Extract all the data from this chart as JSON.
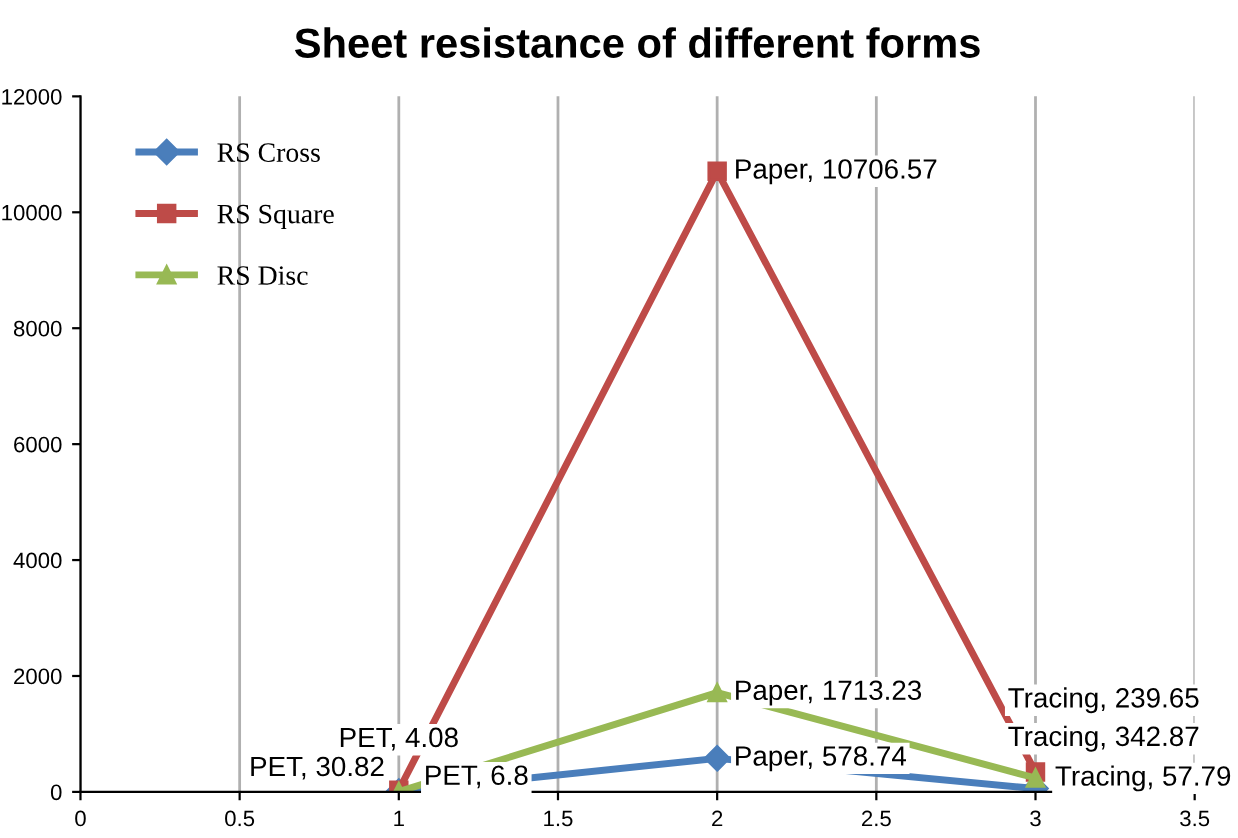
{
  "chart_data": {
    "type": "line",
    "title": "Sheet resistance of different forms",
    "x": [
      1,
      2,
      3
    ],
    "series": [
      {
        "name": "RS Cross",
        "color": "#4a7ebb",
        "marker": "diamond",
        "values": [
          6.8,
          578.74,
          57.79
        ],
        "value_labels": [
          "PET, 6.8",
          "Paper, 578.74",
          "Tracing, 57.79"
        ]
      },
      {
        "name": "RS Square",
        "color": "#be4b48",
        "marker": "square",
        "values": [
          30.82,
          10706.57,
          342.87
        ],
        "value_labels": [
          "PET, 30.82",
          "Paper, 10706.57",
          "Tracing, 342.87"
        ]
      },
      {
        "name": "RS Disc",
        "color": "#98b954",
        "marker": "triangle",
        "values": [
          4.08,
          1713.23,
          239.65
        ],
        "value_labels": [
          "PET, 4.08",
          "Paper, 1713.23",
          "Tracing, 239.65"
        ]
      }
    ],
    "xlim": [
      0,
      3.5
    ],
    "xticks": [
      0,
      0.5,
      1,
      1.5,
      2,
      2.5,
      3,
      3.5
    ],
    "ylim": [
      0,
      12000
    ],
    "yticks": [
      0,
      2000,
      4000,
      6000,
      8000,
      10000,
      12000
    ],
    "grid": "x",
    "legend": "top left"
  }
}
